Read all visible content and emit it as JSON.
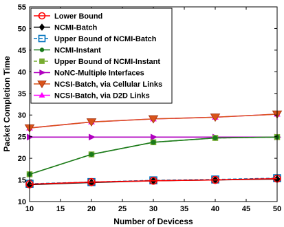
{
  "chart_data": {
    "type": "line",
    "xlabel": "Number of Devicess",
    "ylabel": "Packet Completion Time",
    "x": [
      10,
      20,
      30,
      40,
      50
    ],
    "xlim": [
      10,
      50
    ],
    "ylim": [
      10,
      55
    ],
    "xticks": [
      "10",
      "15",
      "20",
      "25",
      "30",
      "35",
      "40",
      "45",
      "50"
    ],
    "yticks": [
      "10",
      "15",
      "20",
      "25",
      "30",
      "35",
      "40",
      "45",
      "50",
      "55"
    ],
    "grid": false,
    "legend_position": "top-left",
    "series": [
      {
        "name": "Lower Bound",
        "values": [
          14.0,
          14.5,
          14.8,
          15.0,
          15.3
        ],
        "color": "#ff0000",
        "marker": "circle-open",
        "dash": "solid"
      },
      {
        "name": "NCMI-Batch",
        "values": [
          13.9,
          14.4,
          14.8,
          15.0,
          15.2
        ],
        "color": "#000000",
        "marker": "diamond",
        "dash": "solid"
      },
      {
        "name": "Upper Bound of NCMI-Batch",
        "values": [
          14.1,
          14.5,
          14.9,
          15.1,
          15.4
        ],
        "color": "#0072bd",
        "marker": "square-open",
        "dash": "dashed"
      },
      {
        "name": "NCMI-Instant",
        "values": [
          16.3,
          20.9,
          23.7,
          24.7,
          24.9
        ],
        "color": "#1a7a1a",
        "marker": "dot",
        "dash": "solid"
      },
      {
        "name": "Upper Bound of NCMI-Instant",
        "values": [
          16.3,
          20.9,
          23.7,
          24.7,
          24.9
        ],
        "color": "#77ac30",
        "marker": "square",
        "dash": "dashed"
      },
      {
        "name": "NoNC-Multiple Interfaces",
        "values": [
          24.9,
          24.9,
          24.9,
          24.9,
          24.9
        ],
        "color": "#b000c0",
        "marker": "triangle-right",
        "dash": "solid"
      },
      {
        "name": "NCSI-Batch, via Cellular Links",
        "values": [
          27.0,
          28.4,
          29.1,
          29.5,
          30.2
        ],
        "color": "#d95319",
        "marker": "triangle-down",
        "dash": "solid"
      },
      {
        "name": "NCSI-Batch, via D2D Links",
        "values": [
          27.0,
          28.4,
          29.1,
          29.5,
          30.2
        ],
        "color": "#ff00ff",
        "marker": "triangle-up",
        "dash": "solid"
      }
    ]
  }
}
